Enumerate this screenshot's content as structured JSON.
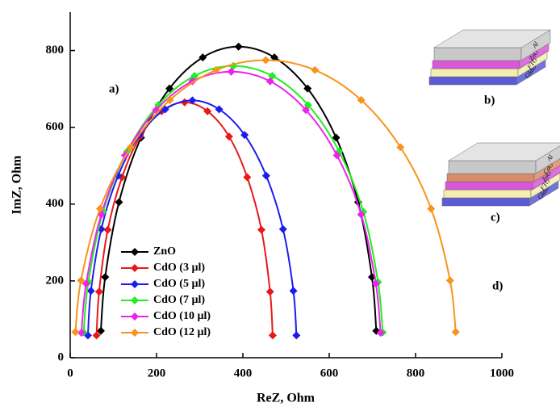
{
  "chart_data": {
    "type": "scatter-line",
    "xlabel": "ReZ, Ohm",
    "ylabel": "ImZ, Ohm",
    "xlim": [
      0,
      1000
    ],
    "ylim": [
      0,
      900
    ],
    "xticks": [
      0,
      200,
      400,
      600,
      800,
      1000
    ],
    "yticks": [
      0,
      200,
      400,
      600,
      800
    ],
    "series": [
      {
        "name": "ZnO",
        "color": "#000000",
        "x": [
          71,
          81,
          113,
          164,
          230,
          307,
          390,
          473,
          550,
          616,
          667,
          699,
          709
        ],
        "values": [
          70,
          210,
          405,
          573,
          701,
          782,
          810,
          782,
          701,
          573,
          405,
          210,
          70
        ]
      },
      {
        "name": "CdO (3 µl)",
        "color": "#e8191a",
        "x": [
          61,
          67,
          87,
          120,
          162,
          212,
          265,
          318,
          368,
          410,
          443,
          463,
          469
        ],
        "values": [
          58,
          172,
          333,
          470,
          576,
          642,
          665,
          642,
          576,
          470,
          333,
          172,
          58
        ]
      },
      {
        "name": "CdO (5 µl)",
        "color": "#1c1cee",
        "x": [
          41,
          48,
          72,
          111,
          161,
          220,
          283,
          345,
          404,
          454,
          493,
          517,
          524
        ],
        "values": [
          58,
          174,
          335,
          474,
          580,
          647,
          670,
          647,
          580,
          474,
          335,
          174,
          58
        ]
      },
      {
        "name": "CdO (7 µl)",
        "color": "#22ee22",
        "x": [
          31,
          42,
          76,
          132,
          204,
          288,
          378,
          468,
          551,
          623,
          679,
          713,
          724
        ],
        "values": [
          66,
          197,
          380,
          537,
          658,
          734,
          760,
          734,
          658,
          537,
          380,
          197,
          66
        ]
      },
      {
        "name": "CdO (10 µl)",
        "color": "#ee22ee",
        "x": [
          26,
          37,
          72,
          127,
          199,
          283,
          373,
          463,
          546,
          618,
          674,
          708,
          719
        ],
        "values": [
          65,
          193,
          373,
          527,
          645,
          720,
          745,
          720,
          645,
          527,
          373,
          193,
          65
        ]
      },
      {
        "name": "CdO (12 µl)",
        "color": "#f7941d",
        "x": [
          12,
          25,
          69,
          140,
          231,
          338,
          453,
          567,
          674,
          765,
          836,
          880,
          893
        ],
        "values": [
          67,
          201,
          388,
          548,
          671,
          749,
          775,
          749,
          671,
          548,
          388,
          201,
          67
        ]
      }
    ],
    "annotations": [
      "a)",
      "b)",
      "c)",
      "d)"
    ],
    "insets": [
      {
        "layers": [
          {
            "name": "Glass",
            "color": "#5b5bd6"
          },
          {
            "name": "FTO",
            "color": "#f3eeb0"
          },
          {
            "name": "ZnO",
            "color": "#d957d9"
          },
          {
            "name": "Al",
            "color": "#c8c8c8"
          }
        ]
      },
      {
        "layers": [
          {
            "name": "Glass",
            "color": "#5b5bd6"
          },
          {
            "name": "FTO",
            "color": "#f3eeb0"
          },
          {
            "name": "ZnO",
            "color": "#d957d9"
          },
          {
            "name": "CdO",
            "color": "#d98c6c"
          },
          {
            "name": "Al",
            "color": "#c8c8c8"
          }
        ]
      }
    ]
  }
}
